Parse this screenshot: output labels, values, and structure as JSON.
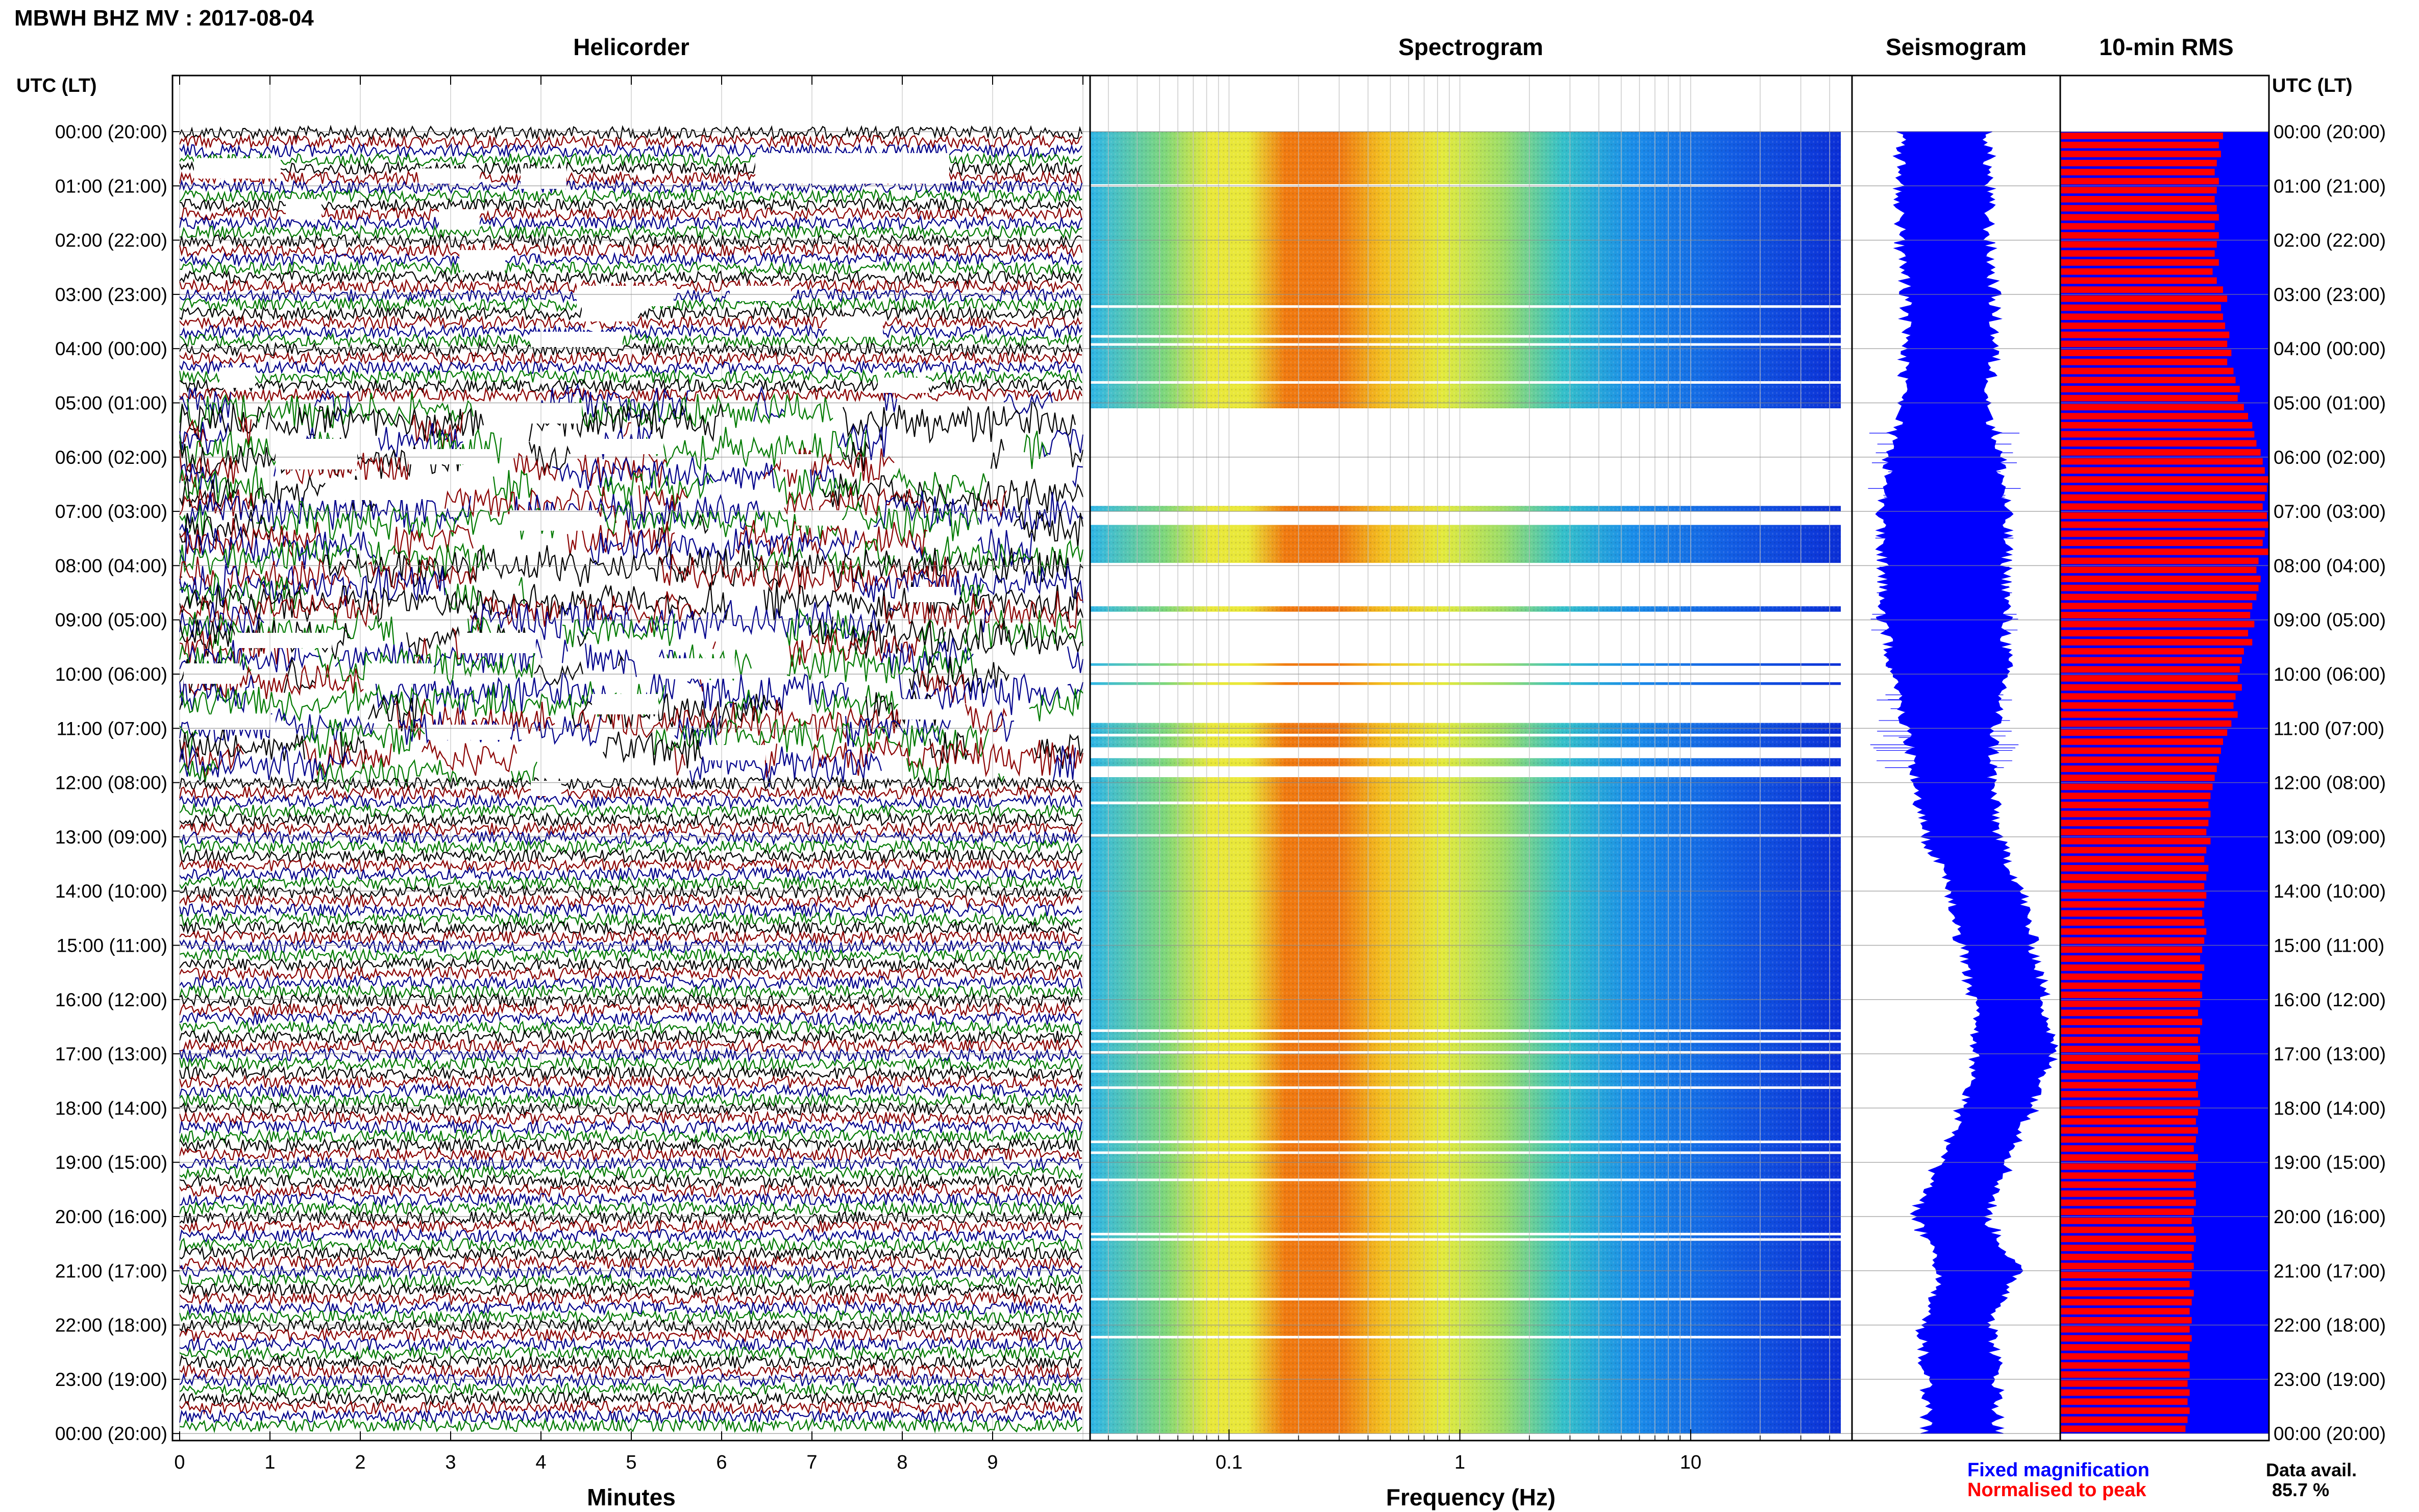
{
  "header": {
    "station_title": "MBWH BHZ MV : 2017-08-04",
    "panel_helicorder": "Helicorder",
    "panel_spectrogram": "Spectrogram",
    "panel_seismogram": "Seismogram",
    "panel_rms": "10-min RMS",
    "axis_left_header": "UTC (LT)",
    "axis_right_header": "UTC (LT)"
  },
  "footer": {
    "xlabel_minutes": "Minutes",
    "xlabel_frequency": "Frequency (Hz)",
    "legend_fixed": "Fixed magnification",
    "legend_normalised": "Normalised to peak",
    "data_avail_label": "Data avail.",
    "data_avail_value": "85.7 %"
  },
  "colors": {
    "helicorder_traces": [
      "#000000",
      "#8b0000",
      "#00008b",
      "#007a00"
    ],
    "seismogram": "#0000ff",
    "rms_fixed": "#0000ff",
    "rms_normalised": "#ff0000",
    "legend_fixed": "#0000ff",
    "legend_normalised": "#ff0000"
  },
  "chart_data": [
    {
      "type": "helicorder",
      "panel": "Helicorder",
      "xlabel": "Minutes",
      "x_ticks": [
        "0",
        "1",
        "2",
        "3",
        "4",
        "5",
        "6",
        "7",
        "8",
        "9"
      ],
      "xlim": [
        0,
        10
      ],
      "row_labels": [
        "00:00 (20:00)",
        "01:00 (21:00)",
        "02:00 (22:00)",
        "03:00 (23:00)",
        "04:00 (00:00)",
        "05:00 (01:00)",
        "06:00 (02:00)",
        "07:00 (03:00)",
        "08:00 (04:00)",
        "09:00 (05:00)",
        "10:00 (06:00)",
        "11:00 (07:00)",
        "12:00 (08:00)",
        "13:00 (09:00)",
        "14:00 (10:00)",
        "15:00 (11:00)",
        "16:00 (12:00)",
        "17:00 (13:00)",
        "18:00 (14:00)",
        "19:00 (15:00)",
        "20:00 (16:00)",
        "21:00 (17:00)",
        "22:00 (18:00)",
        "23:00 (19:00)",
        "00:00 (20:00)"
      ],
      "lines_per_hour": 6,
      "clipped_hours_utc": [
        5,
        6,
        7,
        8,
        9,
        10,
        11
      ]
    },
    {
      "type": "heatmap",
      "panel": "Spectrogram",
      "xlabel": "Frequency (Hz)",
      "x_scale": "log",
      "xlim": [
        0.025,
        50
      ],
      "x_ticks": [
        "0.1",
        "1",
        "10"
      ],
      "dominant_band_hz": [
        0.2,
        0.6
      ],
      "gap_hours_utc": [
        5.1,
        6.0,
        6.5,
        7.0,
        7.6,
        8.1,
        8.6,
        9.2,
        9.8,
        10.3,
        10.7,
        11.6,
        12.2
      ]
    },
    {
      "type": "line",
      "panel": "Seismogram",
      "orientation": "vertical",
      "hours": [
        0,
        1,
        2,
        3,
        4,
        5,
        6,
        7,
        8,
        9,
        10,
        11,
        12,
        13,
        14,
        15,
        16,
        17,
        18,
        19,
        20,
        21,
        22,
        23,
        24
      ],
      "center_offset": [
        0.0,
        0.0,
        0.0,
        0.05,
        0.05,
        0.0,
        0.0,
        0.0,
        0.0,
        0.0,
        0.05,
        0.05,
        0.08,
        0.15,
        0.35,
        0.45,
        0.55,
        0.6,
        0.45,
        0.25,
        0.05,
        0.3,
        0.1,
        0.15,
        0.15
      ],
      "half_width": [
        0.35,
        0.35,
        0.35,
        0.35,
        0.35,
        0.35,
        0.45,
        0.5,
        0.5,
        0.5,
        0.45,
        0.35,
        0.3,
        0.28,
        0.28,
        0.28,
        0.28,
        0.3,
        0.28,
        0.28,
        0.28,
        0.3,
        0.28,
        0.28,
        0.28
      ]
    },
    {
      "type": "bar",
      "panel": "10-min RMS",
      "orientation": "horizontal",
      "series": [
        {
          "name": "Fixed magnification",
          "values": [
            1,
            1,
            1,
            1,
            1,
            1,
            1,
            1,
            1,
            1,
            1,
            1,
            1,
            1,
            1,
            1,
            1,
            1,
            1,
            1,
            1,
            1,
            1,
            1,
            1,
            1,
            1,
            1,
            1,
            1,
            1,
            1,
            1,
            1,
            1,
            1,
            1,
            1,
            1,
            1,
            1,
            1,
            1,
            1,
            1,
            1,
            1,
            1,
            1,
            1,
            1,
            1,
            1,
            1,
            1,
            1,
            1,
            1,
            1,
            1,
            1,
            1,
            1,
            1,
            1,
            1,
            1,
            1,
            1,
            1,
            1,
            1,
            1,
            1,
            1,
            1,
            1,
            1,
            1,
            1,
            1,
            1,
            1,
            1,
            1,
            1,
            1,
            1,
            1,
            1,
            1,
            1,
            1,
            1,
            1,
            1,
            1,
            1,
            1,
            1,
            1,
            1,
            1,
            1,
            1,
            1,
            1,
            1,
            1,
            1,
            1,
            1,
            1,
            1,
            1,
            1,
            1,
            1,
            1,
            1,
            1,
            1,
            1,
            1,
            1,
            1,
            1,
            1,
            1,
            1,
            1,
            1,
            1,
            1,
            1,
            1,
            1,
            1,
            1,
            1,
            1,
            1,
            1,
            1
          ]
        },
        {
          "name": "Normalised to peak",
          "values": [
            0.78,
            0.76,
            0.77,
            0.75,
            0.74,
            0.76,
            0.75,
            0.74,
            0.75,
            0.76,
            0.74,
            0.76,
            0.75,
            0.74,
            0.76,
            0.73,
            0.75,
            0.78,
            0.8,
            0.77,
            0.78,
            0.79,
            0.81,
            0.8,
            0.82,
            0.8,
            0.83,
            0.84,
            0.86,
            0.85,
            0.88,
            0.9,
            0.92,
            0.93,
            0.94,
            0.96,
            0.97,
            0.98,
            1.0,
            0.99,
            0.98,
            0.97,
            0.99,
            1.0,
            0.98,
            0.97,
            1.0,
            0.95,
            0.94,
            0.96,
            0.95,
            0.94,
            0.92,
            0.91,
            0.93,
            0.9,
            0.92,
            0.88,
            0.87,
            0.86,
            0.85,
            0.87,
            0.84,
            0.83,
            0.85,
            0.82,
            0.8,
            0.78,
            0.77,
            0.76,
            0.75,
            0.74,
            0.73,
            0.72,
            0.71,
            0.72,
            0.71,
            0.7,
            0.72,
            0.7,
            0.69,
            0.71,
            0.7,
            0.69,
            0.7,
            0.69,
            0.68,
            0.69,
            0.7,
            0.69,
            0.68,
            0.67,
            0.69,
            0.68,
            0.67,
            0.68,
            0.67,
            0.66,
            0.68,
            0.67,
            0.66,
            0.67,
            0.66,
            0.67,
            0.66,
            0.65,
            0.66,
            0.67,
            0.66,
            0.65,
            0.66,
            0.65,
            0.64,
            0.66,
            0.65,
            0.64,
            0.65,
            0.64,
            0.65,
            0.64,
            0.63,
            0.64,
            0.65,
            0.64,
            0.63,
            0.64,
            0.63,
            0.62,
            0.64,
            0.63,
            0.62,
            0.63,
            0.62,
            0.63,
            0.62,
            0.61,
            0.62,
            0.62,
            0.61,
            0.62,
            0.61,
            0.62,
            0.61,
            0.6
          ]
        }
      ]
    }
  ]
}
